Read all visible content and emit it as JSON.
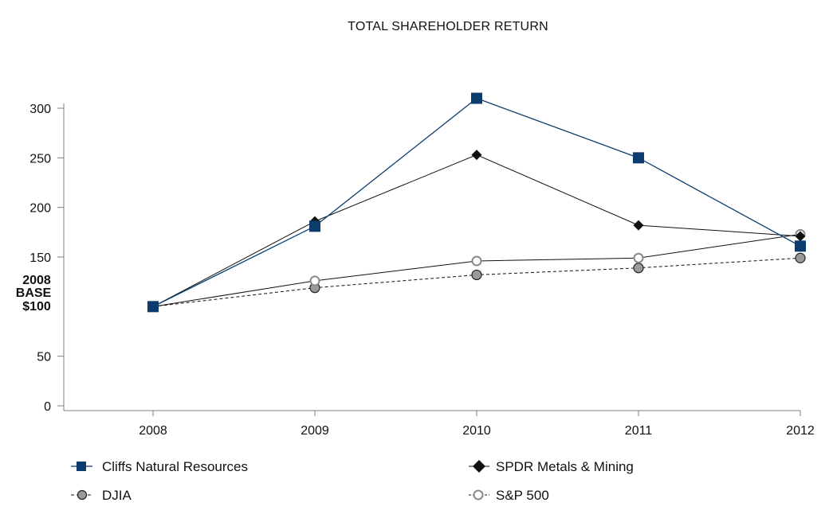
{
  "chart_data": {
    "type": "line",
    "title": "TOTAL SHAREHOLDER RETURN",
    "xlabel": "",
    "ylabel": "",
    "categories": [
      "2008",
      "2009",
      "2010",
      "2011",
      "2012"
    ],
    "ylim": [
      0,
      300
    ],
    "yticks": [
      0,
      50,
      150,
      200,
      250,
      300
    ],
    "base_label": {
      "lines": [
        "2008",
        "BASE",
        "$100"
      ],
      "value": 100
    },
    "grid": false,
    "legend_position": "bottom",
    "series": [
      {
        "name": "Cliffs Natural Resources",
        "values": [
          100,
          181,
          310,
          250,
          161
        ],
        "color": "#0c3b6e",
        "marker": "square",
        "line_style": "solid"
      },
      {
        "name": "SPDR Metals & Mining",
        "values": [
          100,
          186,
          253,
          182,
          171
        ],
        "color": "#111111",
        "marker": "diamond",
        "line_style": "solid"
      },
      {
        "name": "DJIA",
        "values": [
          100,
          119,
          132,
          139,
          149
        ],
        "color": "#111111",
        "marker": "circle-filled-gray",
        "line_style": "dashed"
      },
      {
        "name": "S&P 500",
        "values": [
          100,
          126,
          146,
          149,
          173
        ],
        "color": "#111111",
        "marker": "circle-open",
        "line_style": "solid"
      }
    ]
  }
}
